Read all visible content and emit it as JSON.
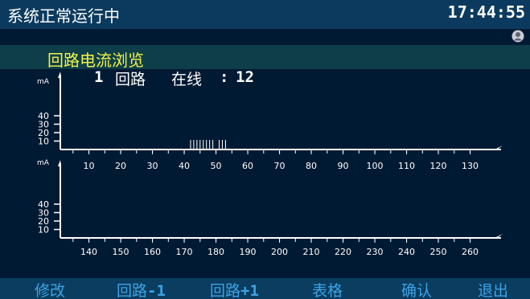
{
  "status": {
    "text": "系统正常运行中",
    "time": "17:44:55"
  },
  "page_title": "回路电流浏览",
  "loop_info": {
    "loop_number": "1",
    "loop_label": "回路",
    "online_label": "在线",
    "separator": ":",
    "online_count": "12"
  },
  "charts": [
    {
      "unit": "mA",
      "y_ticks": [
        10,
        20,
        30,
        40
      ],
      "x_start": 1,
      "x_end": 131,
      "x_ticks": [
        10,
        20,
        30,
        40,
        50,
        60,
        70,
        80,
        90,
        100,
        110,
        120,
        130
      ],
      "signal_positions": [
        42,
        43,
        44,
        45,
        46,
        47,
        48,
        49,
        51,
        52,
        53
      ]
    },
    {
      "unit": "mA",
      "y_ticks": [
        10,
        20,
        30,
        40
      ],
      "x_start": 131,
      "x_end": 261,
      "x_ticks": [
        140,
        150,
        160,
        170,
        180,
        190,
        200,
        210,
        220,
        230,
        240,
        250,
        260
      ],
      "signal_positions": []
    }
  ],
  "menu": [
    {
      "name": "modify-button",
      "label": "修改"
    },
    {
      "name": "loop-prev-button",
      "label": "回路",
      "suffix": "-1"
    },
    {
      "name": "loop-next-button",
      "label": "回路",
      "suffix": "+1"
    },
    {
      "name": "table-button",
      "label": "表格"
    },
    {
      "name": "confirm-button",
      "label": "确认"
    },
    {
      "name": "exit-button",
      "label": "退出"
    }
  ],
  "colors": {
    "background": "#001a33",
    "status_bar": "#0b3a5e",
    "title": "#f2f24a",
    "menu_text": "#3da3e6",
    "axis": "#ffffff"
  }
}
